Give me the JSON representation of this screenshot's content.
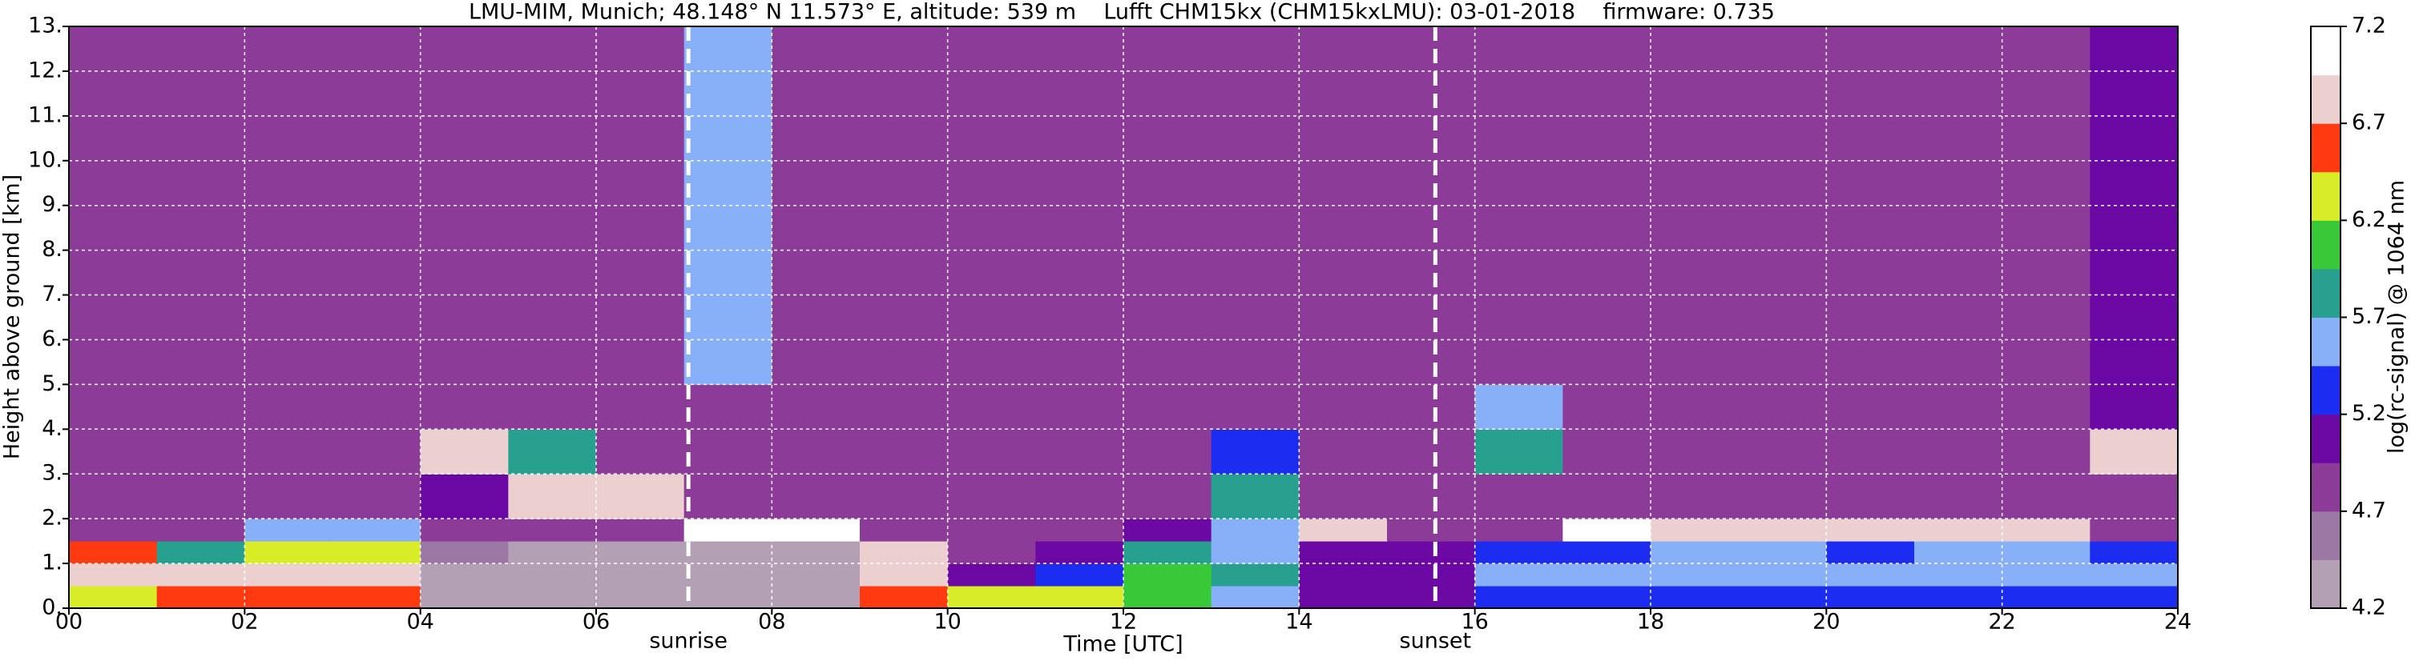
{
  "chart_data": {
    "type": "heatmap",
    "title": "LMU-MIM, Munich; 48.148° N 11.573° E, altitude: 539 m    Lufft CHM15kx (CHM15kxLMU): 03-01-2018    firmware: 0.735",
    "xlabel": "Time [UTC]",
    "ylabel": "Height above ground [km]",
    "xlim": [
      0,
      24
    ],
    "ylim": [
      0,
      13
    ],
    "xticks": [
      {
        "value": 0,
        "label": "00"
      },
      {
        "value": 2,
        "label": "02"
      },
      {
        "value": 4,
        "label": "04"
      },
      {
        "value": 6,
        "label": "06"
      },
      {
        "value": 8,
        "label": "08"
      },
      {
        "value": 10,
        "label": "10"
      },
      {
        "value": 12,
        "label": "12"
      },
      {
        "value": 14,
        "label": "14"
      },
      {
        "value": 16,
        "label": "16"
      },
      {
        "value": 18,
        "label": "18"
      },
      {
        "value": 20,
        "label": "20"
      },
      {
        "value": 22,
        "label": "22"
      },
      {
        "value": 24,
        "label": "24"
      }
    ],
    "yticks": [
      {
        "value": 0,
        "label": "0."
      },
      {
        "value": 1,
        "label": "1."
      },
      {
        "value": 2,
        "label": "2."
      },
      {
        "value": 3,
        "label": "3."
      },
      {
        "value": 4,
        "label": "4."
      },
      {
        "value": 5,
        "label": "5."
      },
      {
        "value": 6,
        "label": "6."
      },
      {
        "value": 7,
        "label": "7."
      },
      {
        "value": 8,
        "label": "8."
      },
      {
        "value": 9,
        "label": "9."
      },
      {
        "value": 10,
        "label": "10."
      },
      {
        "value": 11,
        "label": "11."
      },
      {
        "value": 12,
        "label": "12."
      },
      {
        "value": 13,
        "label": "13."
      }
    ],
    "grid": true,
    "x_bins": [
      0,
      1,
      2,
      3,
      4,
      5,
      6,
      7,
      8,
      9,
      10,
      11,
      12,
      13,
      14,
      15,
      16,
      17,
      18,
      19,
      20,
      21,
      22,
      23,
      24
    ],
    "y_bins": [
      0,
      0.5,
      1,
      1.5,
      2,
      3,
      4,
      5,
      13
    ],
    "z": [
      [
        6.3,
        6.5,
        6.6,
        6.5,
        4.4,
        4.4,
        4.4,
        4.4,
        4.4,
        6.5,
        6.4,
        6.3,
        6.1,
        5.6,
        5.0,
        5.0,
        5.3,
        5.3,
        5.3,
        5.3,
        5.3,
        5.3,
        5.3,
        5.3
      ],
      [
        6.9,
        6.8,
        6.9,
        6.8,
        4.4,
        4.4,
        4.3,
        4.3,
        4.3,
        6.9,
        5.0,
        5.4,
        6.0,
        5.8,
        5.1,
        5.1,
        5.5,
        5.6,
        5.6,
        5.6,
        5.6,
        5.6,
        5.6,
        5.6
      ],
      [
        6.6,
        5.8,
        6.4,
        6.2,
        4.6,
        4.4,
        4.4,
        4.4,
        4.4,
        6.8,
        4.9,
        5.0,
        5.9,
        5.6,
        5.0,
        5.0,
        5.4,
        5.4,
        5.5,
        5.5,
        5.3,
        5.6,
        5.5,
        5.3
      ],
      [
        4.9,
        4.9,
        5.6,
        5.5,
        4.8,
        4.8,
        4.8,
        7.0,
        7.0,
        4.9,
        4.8,
        4.8,
        5.0,
        5.5,
        6.8,
        4.9,
        4.9,
        7.0,
        6.9,
        6.9,
        6.9,
        6.9,
        6.9,
        4.9
      ],
      [
        4.8,
        4.8,
        4.8,
        4.8,
        5.0,
        6.9,
        6.9,
        4.8,
        4.8,
        4.8,
        4.8,
        4.8,
        4.8,
        5.8,
        4.8,
        4.8,
        4.8,
        4.8,
        4.8,
        4.8,
        4.8,
        4.8,
        4.8,
        4.8
      ],
      [
        4.8,
        4.8,
        4.8,
        4.8,
        6.9,
        5.8,
        4.8,
        4.8,
        4.8,
        4.8,
        4.8,
        4.8,
        4.8,
        5.4,
        4.8,
        4.8,
        5.8,
        4.8,
        4.8,
        4.8,
        4.8,
        4.8,
        4.8,
        6.9
      ],
      [
        4.8,
        4.8,
        4.8,
        4.8,
        4.8,
        4.8,
        4.8,
        4.8,
        4.8,
        4.8,
        4.8,
        4.8,
        4.8,
        4.8,
        4.8,
        4.8,
        5.6,
        4.8,
        4.8,
        4.8,
        4.8,
        4.8,
        4.8,
        5.0
      ],
      [
        4.9,
        4.9,
        4.9,
        4.9,
        4.9,
        4.9,
        4.9,
        5.6,
        4.9,
        4.9,
        4.9,
        4.9,
        4.9,
        4.9,
        4.9,
        4.9,
        4.9,
        4.9,
        4.9,
        4.9,
        4.9,
        4.9,
        4.9,
        5.0
      ]
    ],
    "vlines": [
      {
        "x": 7.05,
        "label": "sunrise"
      },
      {
        "x": 15.55,
        "label": "sunset"
      }
    ],
    "colorbar": {
      "label": "log(rc-signal) @ 1064 nm",
      "levels": [
        4.2,
        4.45,
        4.7,
        4.95,
        5.2,
        5.45,
        5.7,
        5.95,
        6.2,
        6.45,
        6.7,
        6.95,
        7.2
      ],
      "colors": [
        "#b4a0b4",
        "#9c78a4",
        "#8c3c98",
        "#6c08a4",
        "#1c2cf0",
        "#88b0f8",
        "#28a090",
        "#38c838",
        "#d8ec28",
        "#ff3a10",
        "#ecd0d0",
        "#ffffff"
      ],
      "ticks": [
        4.2,
        4.7,
        5.2,
        5.7,
        6.2,
        6.7,
        7.2
      ]
    }
  }
}
